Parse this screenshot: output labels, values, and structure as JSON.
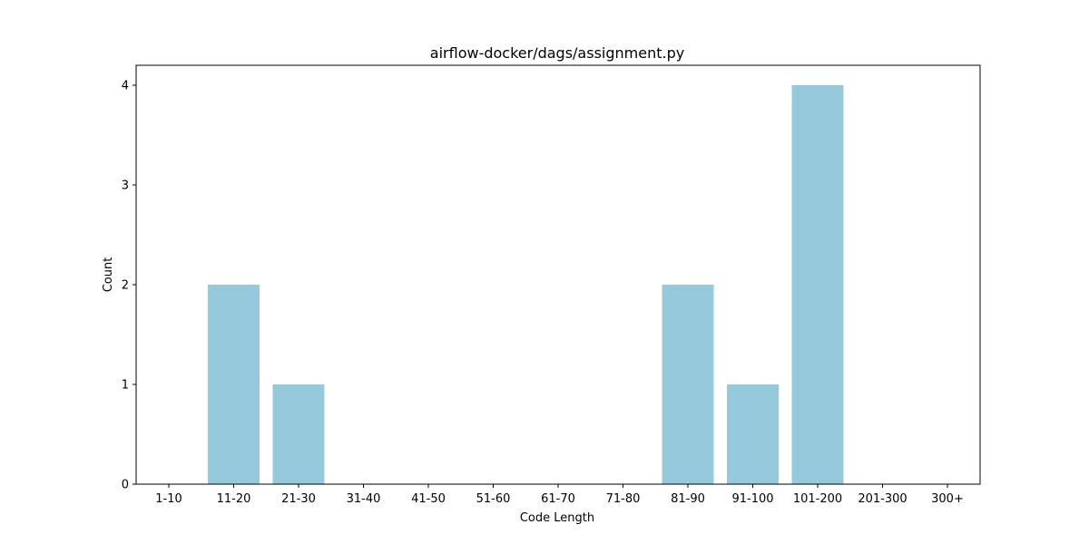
{
  "chart_data": {
    "type": "bar",
    "title": "airflow-docker/dags/assignment.py",
    "xlabel": "Code Length",
    "ylabel": "Count",
    "categories": [
      "1-10",
      "11-20",
      "21-30",
      "31-40",
      "41-50",
      "51-60",
      "61-70",
      "71-80",
      "81-90",
      "91-100",
      "101-200",
      "201-300",
      "300+"
    ],
    "values": [
      0,
      2,
      1,
      0,
      0,
      0,
      0,
      0,
      2,
      1,
      4,
      0,
      0
    ],
    "yticks": [
      "0",
      "1",
      "2",
      "3",
      "4"
    ],
    "ylim": [
      0,
      4.2
    ],
    "bar_color": "#96c9dc",
    "grid": false,
    "legend": "none"
  }
}
